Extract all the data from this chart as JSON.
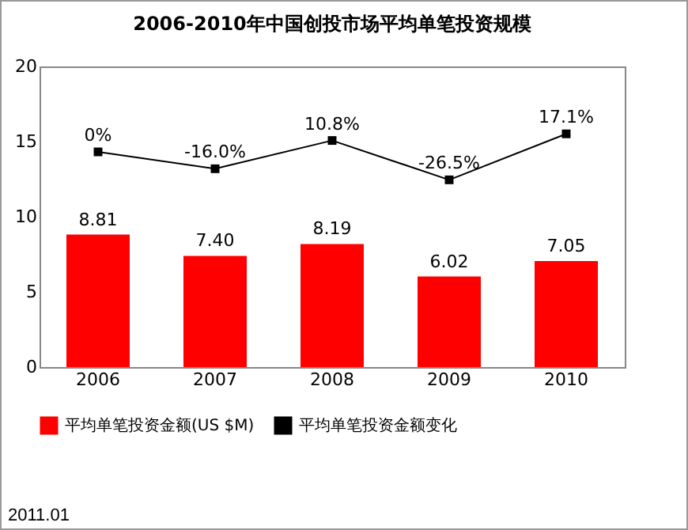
{
  "chart_data": {
    "type": "bar",
    "title": "2006-2010年中国创投市场平均单笔投资规模",
    "categories": [
      "2006",
      "2007",
      "2008",
      "2009",
      "2010"
    ],
    "series": [
      {
        "name": "平均单笔投资金额(US $M)",
        "color": "#ff0000",
        "values": [
          8.81,
          7.4,
          8.19,
          6.02,
          7.05
        ],
        "value_labels": [
          "8.81",
          "7.40",
          "8.19",
          "6.02",
          "7.05"
        ]
      },
      {
        "name": "平均单笔投资金额变化",
        "type": "line",
        "axis": "y2",
        "color": "#000000",
        "marker": "square",
        "values": [
          0,
          -16.0,
          10.8,
          -26.5,
          17.1
        ],
        "value_labels": [
          "0%",
          "-16.0%",
          "10.8%",
          "-26.5%",
          "17.1%"
        ]
      }
    ],
    "ylim": [
      0,
      20
    ],
    "yticks": [
      0,
      5,
      10,
      15,
      20
    ],
    "y2lim": [
      -204,
      81
    ],
    "grid": false,
    "legend": "bottom",
    "annotations": [
      "2011.01"
    ]
  }
}
